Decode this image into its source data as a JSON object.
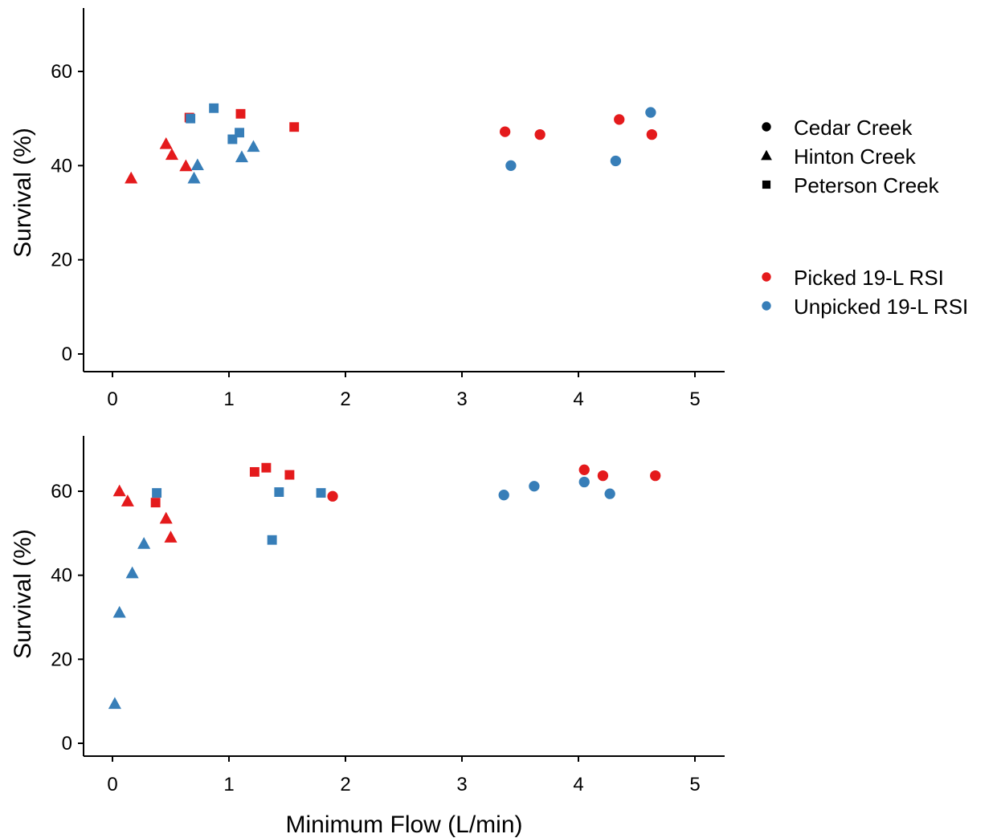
{
  "colors": {
    "picked": "#e41a1c",
    "unpicked": "#377eb8",
    "axis": "#000000",
    "legend_shape_key": "#000000"
  },
  "legend": {
    "shapes": [
      {
        "label": "Cedar Creek",
        "shape": "circle"
      },
      {
        "label": "Hinton Creek",
        "shape": "triangle"
      },
      {
        "label": "Peterson Creek",
        "shape": "square"
      }
    ],
    "colors": [
      {
        "label": "Picked 19-L RSI",
        "color": "#e41a1c"
      },
      {
        "label": "Unpicked 19-L RSI",
        "color": "#377eb8"
      }
    ]
  },
  "chart_data": [
    {
      "type": "scatter",
      "title": "",
      "xlabel": "",
      "ylabel": "Survival (%)",
      "xlim": [
        -0.25,
        5.25
      ],
      "ylim": [
        -3.5,
        73
      ],
      "xticks": [
        0,
        1,
        2,
        3,
        4,
        5
      ],
      "yticks": [
        0,
        20,
        40,
        60
      ],
      "grid": false,
      "legend_position": "right",
      "series": [
        {
          "color_group": "Picked 19-L RSI",
          "shape_group": "Cedar Creek",
          "x": [
            3.37,
            3.67,
            4.35,
            4.63
          ],
          "y": [
            47.2,
            46.6,
            49.8,
            46.6
          ]
        },
        {
          "color_group": "Unpicked 19-L RSI",
          "shape_group": "Cedar Creek",
          "x": [
            3.42,
            4.32,
            4.62
          ],
          "y": [
            40.0,
            41.0,
            51.3
          ]
        },
        {
          "color_group": "Picked 19-L RSI",
          "shape_group": "Hinton Creek",
          "x": [
            0.16,
            0.46,
            0.51,
            0.63
          ],
          "y": [
            37.3,
            44.6,
            42.3,
            39.9
          ]
        },
        {
          "color_group": "Unpicked 19-L RSI",
          "shape_group": "Hinton Creek",
          "x": [
            0.7,
            0.73,
            1.11,
            1.21
          ],
          "y": [
            37.3,
            40.1,
            41.8,
            44.0
          ]
        },
        {
          "color_group": "Picked 19-L RSI",
          "shape_group": "Peterson Creek",
          "x": [
            0.66,
            1.1,
            1.56
          ],
          "y": [
            50.2,
            51.0,
            48.2
          ]
        },
        {
          "color_group": "Unpicked 19-L RSI",
          "shape_group": "Peterson Creek",
          "x": [
            0.67,
            0.87,
            1.03,
            1.09
          ],
          "y": [
            50.0,
            52.2,
            45.6,
            47.0
          ]
        }
      ]
    },
    {
      "type": "scatter",
      "title": "",
      "xlabel": "Minimum Flow (L/min)",
      "ylabel": "Survival (%)",
      "xlim": [
        -0.25,
        5.25
      ],
      "ylim": [
        -3.5,
        73.5
      ],
      "xticks": [
        0,
        1,
        2,
        3,
        4,
        5
      ],
      "yticks": [
        0,
        20,
        40,
        60
      ],
      "grid": false,
      "series": [
        {
          "color_group": "Picked 19-L RSI",
          "shape_group": "Cedar Creek",
          "x": [
            1.89,
            4.05,
            4.21,
            4.66
          ],
          "y": [
            58.8,
            65.1,
            63.7,
            63.7
          ]
        },
        {
          "color_group": "Unpicked 19-L RSI",
          "shape_group": "Cedar Creek",
          "x": [
            3.36,
            3.62,
            4.05,
            4.27
          ],
          "y": [
            59.1,
            61.2,
            62.2,
            59.4
          ]
        },
        {
          "color_group": "Picked 19-L RSI",
          "shape_group": "Hinton Creek",
          "x": [
            0.06,
            0.13,
            0.46,
            0.5
          ],
          "y": [
            60.0,
            57.6,
            53.5,
            49.0
          ]
        },
        {
          "color_group": "Unpicked 19-L RSI",
          "shape_group": "Hinton Creek",
          "x": [
            0.02,
            0.06,
            0.17,
            0.27
          ],
          "y": [
            9.4,
            31.1,
            40.5,
            47.5
          ]
        },
        {
          "color_group": "Picked 19-L RSI",
          "shape_group": "Peterson Creek",
          "x": [
            0.37,
            1.22,
            1.32,
            1.52
          ],
          "y": [
            57.3,
            64.6,
            65.6,
            63.9
          ]
        },
        {
          "color_group": "Unpicked 19-L RSI",
          "shape_group": "Peterson Creek",
          "x": [
            0.38,
            1.37,
            1.43,
            1.79
          ],
          "y": [
            59.6,
            48.4,
            59.8,
            59.6
          ]
        }
      ]
    }
  ]
}
